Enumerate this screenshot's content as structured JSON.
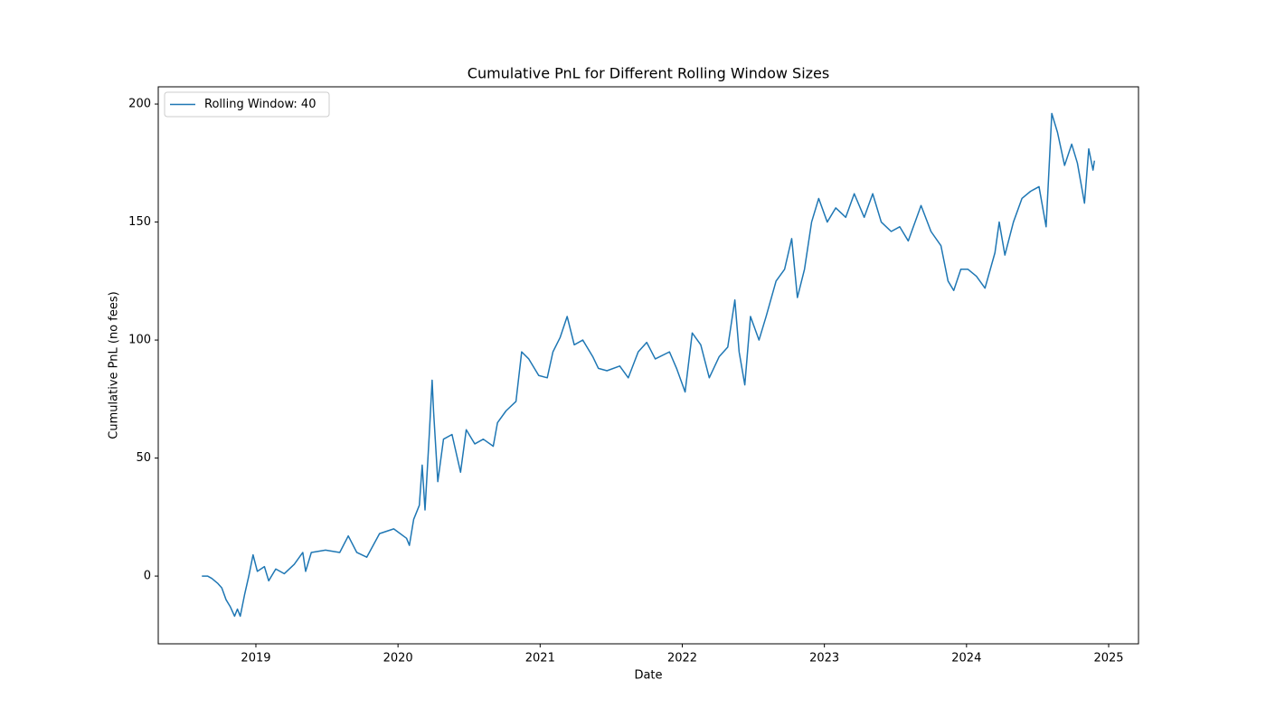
{
  "chart_data": {
    "type": "line",
    "title": "Cumulative PnL for Different Rolling Window Sizes",
    "xlabel": "Date",
    "ylabel": "Cumulative PnL (no fees)",
    "xlim": [
      2018.313,
      2025.21
    ],
    "ylim": [
      -28.7,
      207.3
    ],
    "xticks": [
      2019,
      2020,
      2021,
      2022,
      2023,
      2024,
      2025
    ],
    "yticks": [
      0,
      50,
      100,
      150,
      200
    ],
    "legend": "upper left",
    "x": [
      2018.62,
      2018.66,
      2018.69,
      2018.73,
      2018.76,
      2018.79,
      2018.82,
      2018.85,
      2018.87,
      2018.89,
      2018.92,
      2018.95,
      2018.98,
      2019.01,
      2019.06,
      2019.09,
      2019.14,
      2019.2,
      2019.27,
      2019.33,
      2019.35,
      2019.39,
      2019.49,
      2019.59,
      2019.65,
      2019.71,
      2019.78,
      2019.87,
      2019.97,
      2020.06,
      2020.08,
      2020.11,
      2020.15,
      2020.17,
      2020.19,
      2020.22,
      2020.24,
      2020.25,
      2020.28,
      2020.32,
      2020.38,
      2020.44,
      2020.48,
      2020.54,
      2020.6,
      2020.67,
      2020.7,
      2020.76,
      2020.83,
      2020.87,
      2020.92,
      2020.99,
      2021.05,
      2021.09,
      2021.14,
      2021.19,
      2021.24,
      2021.3,
      2021.37,
      2021.41,
      2021.47,
      2021.56,
      2021.62,
      2021.69,
      2021.75,
      2021.81,
      2021.91,
      2021.96,
      2022.02,
      2022.07,
      2022.13,
      2022.19,
      2022.26,
      2022.32,
      2022.37,
      2022.4,
      2022.44,
      2022.48,
      2022.54,
      2022.59,
      2022.66,
      2022.72,
      2022.77,
      2022.81,
      2022.86,
      2022.91,
      2022.96,
      2023.02,
      2023.08,
      2023.15,
      2023.21,
      2023.28,
      2023.34,
      2023.4,
      2023.47,
      2023.53,
      2023.59,
      2023.68,
      2023.75,
      2023.82,
      2023.87,
      2023.91,
      2023.96,
      2024.01,
      2024.07,
      2024.13,
      2024.2,
      2024.23,
      2024.27,
      2024.33,
      2024.39,
      2024.45,
      2024.51,
      2024.56,
      2024.6,
      2024.64,
      2024.69,
      2024.74,
      2024.78,
      2024.83,
      2024.86,
      2024.89,
      2024.9
    ],
    "series": [
      {
        "name": "Rolling Window: 40",
        "color": "#1f77b4",
        "values": [
          0,
          0,
          -1,
          -3,
          -5,
          -10,
          -13,
          -17,
          -14,
          -17,
          -8,
          0,
          9,
          2,
          4,
          -2,
          3,
          1,
          5,
          10,
          2,
          10,
          11,
          10,
          17,
          10,
          8,
          18,
          20,
          16,
          13,
          24,
          30,
          47,
          28,
          60,
          83,
          70,
          40,
          58,
          60,
          44,
          62,
          56,
          58,
          55,
          65,
          70,
          74,
          95,
          92,
          85,
          84,
          95,
          101,
          110,
          98,
          100,
          93,
          88,
          87,
          89,
          84,
          95,
          99,
          92,
          95,
          88,
          78,
          103,
          98,
          84,
          93,
          97,
          117,
          95,
          81,
          110,
          100,
          110,
          125,
          130,
          143,
          118,
          130,
          150,
          160,
          150,
          156,
          152,
          162,
          152,
          162,
          150,
          146,
          148,
          142,
          157,
          146,
          140,
          125,
          121,
          130,
          130,
          127,
          122,
          137,
          150,
          136,
          150,
          160,
          163,
          165,
          148,
          196,
          188,
          174,
          183,
          175,
          158,
          181,
          172,
          176
        ]
      }
    ]
  }
}
